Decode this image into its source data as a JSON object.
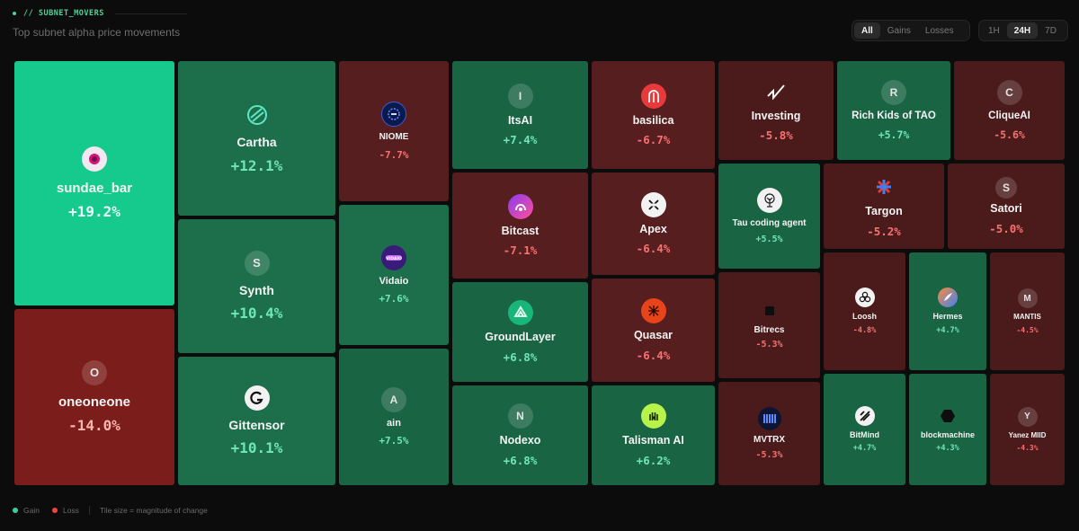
{
  "header": {
    "eyebrow": "// SUBNET_MOVERS",
    "subtitle": "Top subnet alpha price movements"
  },
  "filters": {
    "options": [
      "All",
      "Gains",
      "Losses"
    ],
    "selected": "All"
  },
  "timeframes": {
    "options": [
      "1H",
      "24H",
      "7D"
    ],
    "selected": "24H"
  },
  "tiles": [
    {
      "name": "sundae_bar",
      "change": "+19.2%",
      "change_value": 19.2,
      "icon": "sundae-bar-logo-icon",
      "letter": ""
    },
    {
      "name": "oneoneone",
      "change": "-14.0%",
      "change_value": -14.0,
      "icon": "letter-o-icon",
      "letter": "O"
    },
    {
      "name": "Cartha",
      "change": "+12.1%",
      "change_value": 12.1,
      "icon": "cartha-logo-icon",
      "letter": ""
    },
    {
      "name": "Synth",
      "change": "+10.4%",
      "change_value": 10.4,
      "icon": "letter-s-icon",
      "letter": "S"
    },
    {
      "name": "Gittensor",
      "change": "+10.1%",
      "change_value": 10.1,
      "icon": "gittensor-logo-icon",
      "letter": ""
    },
    {
      "name": "NIOME",
      "change": "-7.7%",
      "change_value": -7.7,
      "icon": "niome-logo-icon",
      "letter": ""
    },
    {
      "name": "Vidaio",
      "change": "+7.6%",
      "change_value": 7.6,
      "icon": "vidaio-logo-icon",
      "letter": ""
    },
    {
      "name": "ain",
      "change": "+7.5%",
      "change_value": 7.5,
      "icon": "letter-a-icon",
      "letter": "A"
    },
    {
      "name": "ItsAI",
      "change": "+7.4%",
      "change_value": 7.4,
      "icon": "letter-i-icon",
      "letter": "I"
    },
    {
      "name": "Bitcast",
      "change": "-7.1%",
      "change_value": -7.1,
      "icon": "bitcast-logo-icon",
      "letter": ""
    },
    {
      "name": "GroundLayer",
      "change": "+6.8%",
      "change_value": 6.8,
      "icon": "groundlayer-logo-icon",
      "letter": ""
    },
    {
      "name": "Nodexo",
      "change": "+6.8%",
      "change_value": 6.8,
      "icon": "letter-n-icon",
      "letter": "N"
    },
    {
      "name": "basilica",
      "change": "-6.7%",
      "change_value": -6.7,
      "icon": "basilica-logo-icon",
      "letter": ""
    },
    {
      "name": "Apex",
      "change": "-6.4%",
      "change_value": -6.4,
      "icon": "apex-logo-icon",
      "letter": ""
    },
    {
      "name": "Quasar",
      "change": "-6.4%",
      "change_value": -6.4,
      "icon": "quasar-logo-icon",
      "letter": ""
    },
    {
      "name": "Talisman AI",
      "change": "+6.2%",
      "change_value": 6.2,
      "icon": "talisman-logo-icon",
      "letter": ""
    },
    {
      "name": "Investing",
      "change": "-5.8%",
      "change_value": -5.8,
      "icon": "investing-logo-icon",
      "letter": ""
    },
    {
      "name": "Rich Kids of TAO",
      "change": "+5.7%",
      "change_value": 5.7,
      "icon": "letter-r-icon",
      "letter": "R"
    },
    {
      "name": "CliqueAI",
      "change": "-5.6%",
      "change_value": -5.6,
      "icon": "letter-c-icon",
      "letter": "C"
    },
    {
      "name": "Tau coding agent",
      "change": "+5.5%",
      "change_value": 5.5,
      "icon": "tree-logo-icon",
      "letter": ""
    },
    {
      "name": "Targon",
      "change": "-5.2%",
      "change_value": -5.2,
      "icon": "targon-logo-icon",
      "letter": ""
    },
    {
      "name": "Satori",
      "change": "-5.0%",
      "change_value": -5.0,
      "icon": "letter-s-icon",
      "letter": "S"
    },
    {
      "name": "Bitrecs",
      "change": "-5.3%",
      "change_value": -5.3,
      "icon": "bitrecs-logo-icon",
      "letter": ""
    },
    {
      "name": "MVTRX",
      "change": "-5.3%",
      "change_value": -5.3,
      "icon": "mvtrx-logo-icon",
      "letter": ""
    },
    {
      "name": "Loosh",
      "change": "-4.8%",
      "change_value": -4.8,
      "icon": "loosh-logo-icon",
      "letter": ""
    },
    {
      "name": "Hermes",
      "change": "+4.7%",
      "change_value": 4.7,
      "icon": "hermes-logo-icon",
      "letter": ""
    },
    {
      "name": "MANTIS",
      "change": "-4.5%",
      "change_value": -4.5,
      "icon": "letter-m-icon",
      "letter": "M"
    },
    {
      "name": "BitMind",
      "change": "+4.7%",
      "change_value": 4.7,
      "icon": "bitmind-logo-icon",
      "letter": ""
    },
    {
      "name": "blockmachine",
      "change": "+4.3%",
      "change_value": 4.3,
      "icon": "blockmachine-logo-icon",
      "letter": ""
    },
    {
      "name": "Yanez MIID",
      "change": "-4.3%",
      "change_value": -4.3,
      "icon": "letter-y-icon",
      "letter": "Y"
    }
  ],
  "legend": {
    "gain_label": "Gain",
    "loss_label": "Loss",
    "note": "Tile size = magnitude of change",
    "gain_color": "#34d399",
    "loss_color": "#ef4444"
  }
}
